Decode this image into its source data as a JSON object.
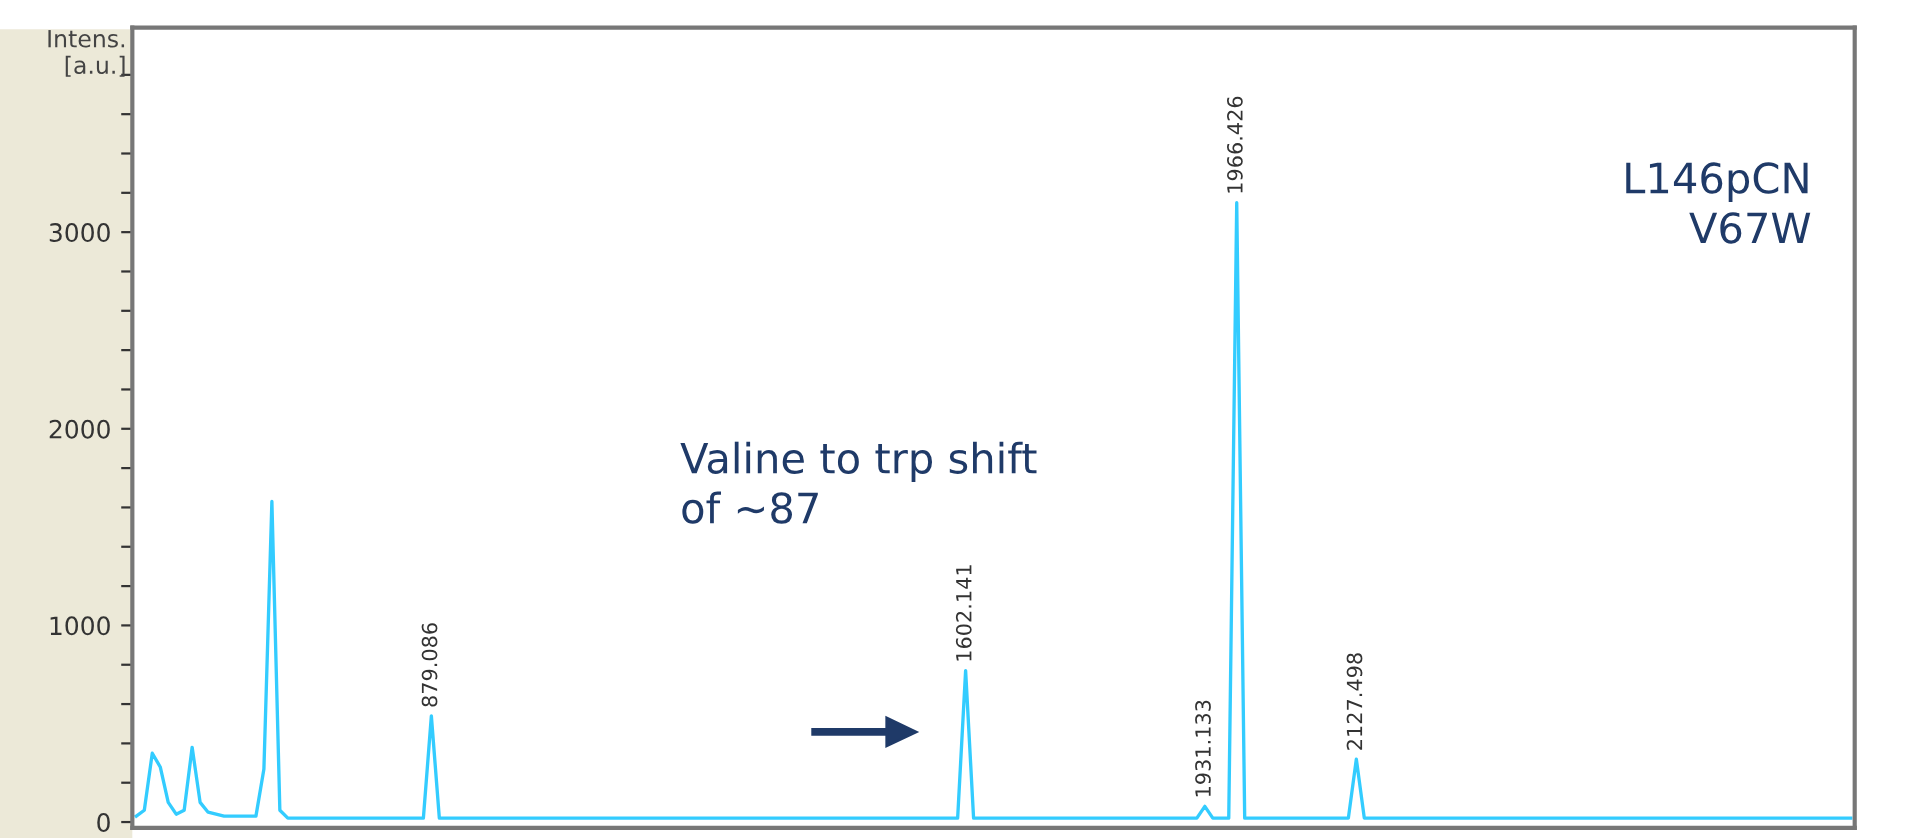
{
  "chart_data": {
    "type": "line",
    "ylabel": "Intens.\n[a.u.]",
    "tick_labels": "y",
    "categories": [
      null,
      null,
      null,
      null,
      null,
      null,
      null,
      null,
      null,
      null,
      null,
      null,
      null,
      null,
      null,
      null,
      null,
      null,
      null,
      null,
      null,
      null,
      null,
      null,
      null,
      null,
      null,
      null,
      null,
      null,
      null,
      null,
      null,
      null,
      null,
      null,
      null,
      null,
      null,
      null,
      null,
      null,
      null,
      null,
      null,
      null,
      null,
      null,
      null,
      null,
      null,
      null,
      null,
      null,
      null,
      null,
      null,
      null,
      null,
      null,
      null,
      null,
      null,
      null,
      null,
      null,
      null,
      null,
      null,
      null,
      null,
      null,
      null,
      null,
      null,
      null,
      null,
      null,
      null,
      null,
      null,
      null,
      null,
      null,
      null,
      null,
      null,
      null,
      null,
      null,
      null,
      null,
      null,
      null,
      null,
      null,
      null,
      null,
      null,
      null,
      null,
      null,
      null,
      null,
      null,
      null,
      null,
      null,
      null,
      null,
      null,
      null,
      null,
      null,
      null,
      null,
      null,
      null,
      null,
      null,
      null,
      null,
      null,
      null,
      null,
      null,
      null,
      null,
      null,
      null,
      null,
      null,
      null,
      null,
      null,
      null,
      null,
      null,
      null,
      null,
      null,
      null,
      null,
      null,
      null,
      null,
      null,
      null,
      null,
      null,
      null,
      null,
      null,
      null,
      null,
      null,
      null,
      null,
      null,
      null,
      null,
      null,
      null,
      null,
      null,
      null,
      null,
      null,
      null,
      null,
      null,
      null,
      null,
      null,
      null,
      null,
      null,
      null,
      null,
      null,
      null,
      null,
      null,
      null,
      null,
      null,
      null,
      null,
      null,
      null,
      null,
      null,
      null,
      null,
      null,
      null,
      null,
      null,
      null,
      null,
      null,
      null,
      null,
      null,
      null,
      null,
      null,
      null,
      null,
      null,
      null,
      null,
      null,
      null,
      null,
      null
    ],
    "ylim": [
      -30,
      4040
    ],
    "yticks": [
      0,
      {
        "value": 200,
        "label": null
      },
      {
        "value": 400,
        "label": null
      },
      {
        "value": 600,
        "label": null
      },
      {
        "value": 800,
        "label": null
      },
      1000,
      {
        "value": 1200,
        "label": null
      },
      {
        "value": 1400,
        "label": null
      },
      {
        "value": 1600,
        "label": null
      },
      {
        "value": 1800,
        "label": null
      },
      2000,
      {
        "value": 2200,
        "label": null
      },
      {
        "value": 2400,
        "label": null
      },
      {
        "value": 2600,
        "label": null
      },
      {
        "value": 2800,
        "label": null
      },
      3000,
      {
        "value": 3200,
        "label": null
      },
      {
        "value": 3400,
        "label": null
      },
      {
        "value": 3600,
        "label": null
      },
      {
        "value": 3800,
        "label": null
      }
    ],
    "grid": false,
    "series": [
      {
        "color": "#33ccff",
        "values": [
          30,
          60,
          350,
          280,
          100,
          40,
          60,
          380,
          100,
          50,
          40,
          30,
          30,
          30,
          30,
          30,
          270,
          1630,
          60,
          20,
          20,
          20,
          20,
          20,
          20,
          20,
          20,
          20,
          20,
          20,
          20,
          20,
          20,
          20,
          20,
          20,
          20,
          540,
          20,
          20,
          20,
          20,
          20,
          20,
          20,
          20,
          20,
          20,
          20,
          20,
          20,
          20,
          20,
          20,
          20,
          20,
          20,
          20,
          20,
          20,
          20,
          20,
          20,
          20,
          20,
          20,
          20,
          20,
          20,
          20,
          20,
          20,
          20,
          20,
          20,
          20,
          20,
          20,
          20,
          20,
          20,
          20,
          20,
          20,
          20,
          20,
          20,
          20,
          20,
          20,
          20,
          20,
          20,
          20,
          20,
          20,
          20,
          20,
          20,
          20,
          20,
          20,
          20,
          20,
          770,
          20,
          20,
          20,
          20,
          20,
          20,
          20,
          20,
          20,
          20,
          20,
          20,
          20,
          20,
          20,
          20,
          20,
          20,
          20,
          20,
          20,
          20,
          20,
          20,
          20,
          20,
          20,
          20,
          20,
          80,
          20,
          20,
          20,
          3150,
          20,
          20,
          20,
          20,
          20,
          20,
          20,
          20,
          20,
          20,
          20,
          20,
          20,
          20,
          320,
          20,
          20,
          20,
          20,
          20,
          20,
          20,
          20,
          20,
          20,
          20,
          20,
          20,
          20,
          20,
          20,
          20,
          20,
          20,
          20,
          20,
          20,
          20,
          20,
          20,
          20,
          20,
          20,
          20,
          20,
          20,
          20,
          20,
          20,
          20,
          20,
          20,
          20,
          20,
          20,
          20,
          20,
          20,
          20,
          20,
          20,
          20,
          20,
          20,
          20,
          20,
          20,
          20,
          20,
          20,
          20,
          20,
          20,
          20,
          20,
          20,
          20
        ],
        "name": null
      }
    ],
    "annotations": [
      {
        "text": "879.086",
        "y": 540
      },
      {
        "text": "1602.141",
        "y": 770
      },
      {
        "text": "1931.133",
        "y": 80
      },
      {
        "text": "1966.426",
        "y": 3150
      },
      {
        "text": "2127.498",
        "y": 320
      },
      "Valine to trp shift\nof ~87",
      "L146pCN\nV67W"
    ]
  }
}
